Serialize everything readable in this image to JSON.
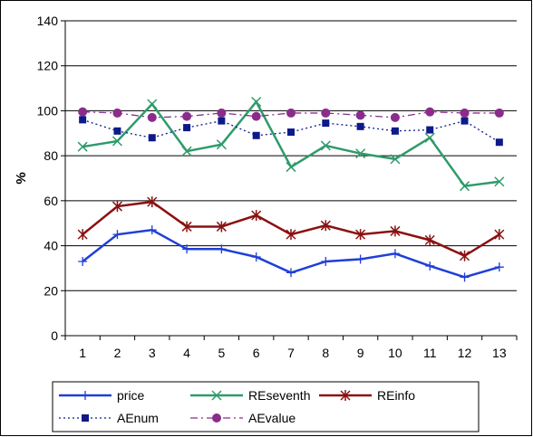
{
  "chart_data": {
    "type": "line",
    "title": "",
    "xlabel": "",
    "ylabel": "%",
    "x": [
      1,
      2,
      3,
      4,
      5,
      6,
      7,
      8,
      9,
      10,
      11,
      12,
      13
    ],
    "x_tick_labels": [
      "1",
      "2",
      "3",
      "4",
      "5",
      "6",
      "7",
      "8",
      "9",
      "10",
      "11",
      "12",
      "13"
    ],
    "ylim": [
      0,
      140
    ],
    "y_ticks": [
      0,
      20,
      40,
      60,
      80,
      100,
      120,
      140
    ],
    "y_tick_labels": [
      "0",
      "20",
      "40",
      "60",
      "80",
      "100",
      "120",
      "140"
    ],
    "grid": "horizontal",
    "legend_position": "bottom",
    "series": [
      {
        "name": "price",
        "color": "#1f3fd8",
        "style": "solid",
        "marker": "plus",
        "values": [
          33,
          45,
          47,
          38.5,
          38.5,
          35,
          28,
          33,
          34,
          36.5,
          31,
          26,
          30.5
        ]
      },
      {
        "name": "REseventh",
        "color": "#2e9b6a",
        "style": "solid",
        "marker": "x",
        "values": [
          84,
          86.5,
          103,
          82,
          85,
          104,
          75,
          84.5,
          81,
          78.5,
          88,
          66.5,
          68.5
        ]
      },
      {
        "name": "REinfo",
        "color": "#8b1111",
        "style": "solid",
        "marker": "star",
        "values": [
          45,
          57.5,
          59.5,
          48.5,
          48.5,
          53.5,
          45,
          49,
          45,
          46.5,
          42.5,
          35.5,
          45
        ]
      },
      {
        "name": "AEnum",
        "color": "#0d1a8a",
        "style": "dotted",
        "marker": "square",
        "values": [
          96,
          91,
          88,
          92.5,
          95.5,
          89,
          90.5,
          94.5,
          93,
          91,
          91.5,
          95.5,
          86
        ]
      },
      {
        "name": "AEvalue",
        "color": "#8b2c8b",
        "style": "dashdot",
        "marker": "circle",
        "values": [
          99.5,
          99,
          97,
          97.5,
          99,
          97.5,
          99,
          99,
          98,
          97,
          99.5,
          99,
          99
        ]
      }
    ]
  }
}
